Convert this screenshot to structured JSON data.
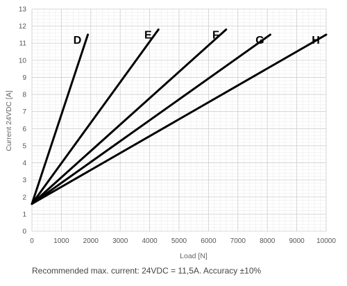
{
  "chart_data": {
    "type": "line",
    "title": "",
    "xlabel": "Load [N]",
    "ylabel": "Current 24VDC [A]",
    "xlim": [
      0,
      10000
    ],
    "ylim": [
      0,
      13
    ],
    "x_ticks": [
      0,
      1000,
      2000,
      3000,
      4000,
      5000,
      6000,
      7000,
      8000,
      9000,
      10000
    ],
    "y_ticks": [
      0,
      1,
      2,
      3,
      4,
      5,
      6,
      7,
      8,
      9,
      10,
      11,
      12,
      13
    ],
    "grid": true,
    "legend": "none",
    "line_color": "#000000",
    "series": [
      {
        "name": "D",
        "points": [
          [
            0,
            1.6
          ],
          [
            1900,
            11.5
          ]
        ]
      },
      {
        "name": "E",
        "points": [
          [
            0,
            1.6
          ],
          [
            4300,
            11.8
          ]
        ]
      },
      {
        "name": "F",
        "points": [
          [
            0,
            1.6
          ],
          [
            6600,
            11.8
          ]
        ]
      },
      {
        "name": "G",
        "points": [
          [
            0,
            1.6
          ],
          [
            8100,
            11.5
          ]
        ]
      },
      {
        "name": "H",
        "points": [
          [
            0,
            1.6
          ],
          [
            10000,
            11.5
          ]
        ]
      }
    ]
  },
  "footnote": "Recommended max. current: 24VDC = 11,5A.  Accuracy ±10%"
}
